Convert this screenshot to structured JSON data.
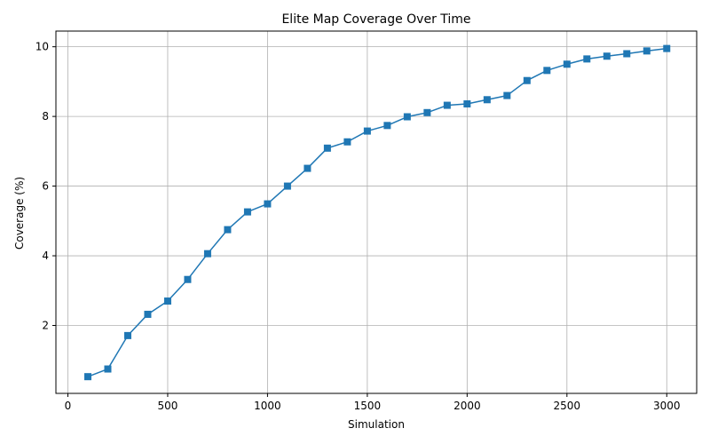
{
  "chart_data": {
    "type": "line",
    "title": "Elite Map Coverage Over Time",
    "xlabel": "Simulation",
    "ylabel": "Coverage (%)",
    "xlim": [
      -60,
      3150
    ],
    "ylim": [
      0.05,
      10.45
    ],
    "xticks": [
      0,
      500,
      1000,
      1500,
      2000,
      2500,
      3000
    ],
    "yticks": [
      2,
      4,
      6,
      8,
      10
    ],
    "grid": true,
    "marker": "square",
    "color": "#1f77b4",
    "x": [
      100,
      200,
      300,
      400,
      500,
      600,
      700,
      800,
      900,
      1000,
      1100,
      1200,
      1300,
      1400,
      1500,
      1600,
      1700,
      1800,
      1900,
      2000,
      2100,
      2200,
      2300,
      2400,
      2500,
      2600,
      2700,
      2800,
      2900,
      3000
    ],
    "y": [
      0.53,
      0.75,
      1.71,
      2.32,
      2.7,
      3.32,
      4.06,
      4.75,
      5.26,
      5.49,
      6.0,
      6.51,
      7.09,
      7.27,
      7.58,
      7.74,
      7.99,
      8.11,
      8.32,
      8.36,
      8.48,
      8.6,
      9.03,
      9.32,
      9.5,
      9.65,
      9.73,
      9.8,
      9.88,
      9.95
    ]
  }
}
